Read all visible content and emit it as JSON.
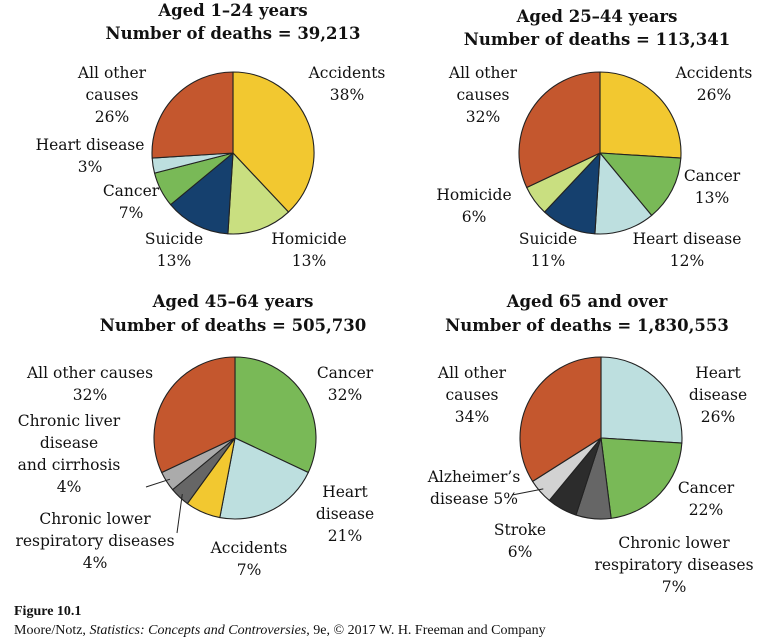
{
  "colors": {
    "Accidents": "#f2c830",
    "Homicide": "#c9df80",
    "Suicide": "#15406e",
    "Cancer": "#79b957",
    "Heart disease": "#bddfdf",
    "All other causes": "#c4572e",
    "Chronic liver disease and cirrhosis": "#ababab",
    "Chronic lower respiratory diseases": "#666666",
    "Alzheimer's disease": "#d2d2d2",
    "Stroke": "#2c2c2c",
    "stroke": "#222222"
  },
  "chart_data": [
    {
      "type": "pie",
      "title": "Aged 1–24 years",
      "subtitle": "Number of deaths = 39,213",
      "slices": [
        {
          "name": "Accidents",
          "value": 38,
          "label_lines": [
            "Accidents",
            "38%"
          ]
        },
        {
          "name": "Homicide",
          "value": 13,
          "label_lines": [
            "Homicide",
            "13%"
          ]
        },
        {
          "name": "Suicide",
          "value": 13,
          "label_lines": [
            "Suicide",
            "13%"
          ]
        },
        {
          "name": "Cancer",
          "value": 7,
          "label_lines": [
            "Cancer",
            "7%"
          ]
        },
        {
          "name": "Heart disease",
          "value": 3,
          "label_lines": [
            "Heart disease",
            "3%"
          ]
        },
        {
          "name": "All other causes",
          "value": 26,
          "label_lines": [
            "All other",
            "causes",
            "26%"
          ]
        }
      ]
    },
    {
      "type": "pie",
      "title": "Aged 25–44 years",
      "subtitle": "Number of deaths = 113,341",
      "slices": [
        {
          "name": "Accidents",
          "value": 26,
          "label_lines": [
            "Accidents",
            "26%"
          ]
        },
        {
          "name": "Cancer",
          "value": 13,
          "label_lines": [
            "Cancer",
            "13%"
          ]
        },
        {
          "name": "Heart disease",
          "value": 12,
          "label_lines": [
            "Heart disease",
            "12%"
          ]
        },
        {
          "name": "Suicide",
          "value": 11,
          "label_lines": [
            "Suicide",
            "11%"
          ]
        },
        {
          "name": "Homicide",
          "value": 6,
          "label_lines": [
            "Homicide",
            "6%"
          ]
        },
        {
          "name": "All other causes",
          "value": 32,
          "label_lines": [
            "All other",
            "causes",
            "32%"
          ]
        }
      ]
    },
    {
      "type": "pie",
      "title": "Aged 45–64 years",
      "subtitle": "Number of deaths = 505,730",
      "slices": [
        {
          "name": "Cancer",
          "value": 32,
          "label_lines": [
            "Cancer",
            "32%"
          ]
        },
        {
          "name": "Heart disease",
          "value": 21,
          "label_lines": [
            "Heart",
            "disease",
            "21%"
          ]
        },
        {
          "name": "Accidents",
          "value": 7,
          "label_lines": [
            "Accidents",
            "7%"
          ]
        },
        {
          "name": "Chronic lower respiratory diseases",
          "value": 4,
          "label_lines": [
            "Chronic lower",
            "respiratory diseases",
            "4%"
          ]
        },
        {
          "name": "Chronic liver disease and cirrhosis",
          "value": 4,
          "label_lines": [
            "Chronic liver",
            "disease",
            "and cirrhosis",
            "4%"
          ]
        },
        {
          "name": "All other causes",
          "value": 32,
          "label_lines": [
            "All other causes",
            "32%"
          ]
        }
      ]
    },
    {
      "type": "pie",
      "title": "Aged 65 and over",
      "subtitle": "Number of deaths = 1,830,553",
      "slices": [
        {
          "name": "Heart disease",
          "value": 26,
          "label_lines": [
            "Heart",
            "disease",
            "26%"
          ]
        },
        {
          "name": "Cancer",
          "value": 22,
          "label_lines": [
            "Cancer",
            "22%"
          ]
        },
        {
          "name": "Chronic lower respiratory diseases",
          "value": 7,
          "label_lines": [
            "Chronic lower",
            "respiratory diseases",
            "7%"
          ]
        },
        {
          "name": "Stroke",
          "value": 6,
          "label_lines": [
            "Stroke",
            "6%"
          ]
        },
        {
          "name": "Alzheimer's disease",
          "value": 5,
          "label_lines": [
            "Alzheimer’s",
            "disease 5%"
          ]
        },
        {
          "name": "All other causes",
          "value": 34,
          "label_lines": [
            "All other",
            "causes",
            "34%"
          ]
        }
      ]
    }
  ],
  "caption": {
    "figure": "Figure 10.1",
    "source_prefix": "Moore/Notz, ",
    "source_title": "Statistics: Concepts and Controversies",
    "source_suffix": ", 9e, © 2017 W. H. Freeman and Company"
  }
}
